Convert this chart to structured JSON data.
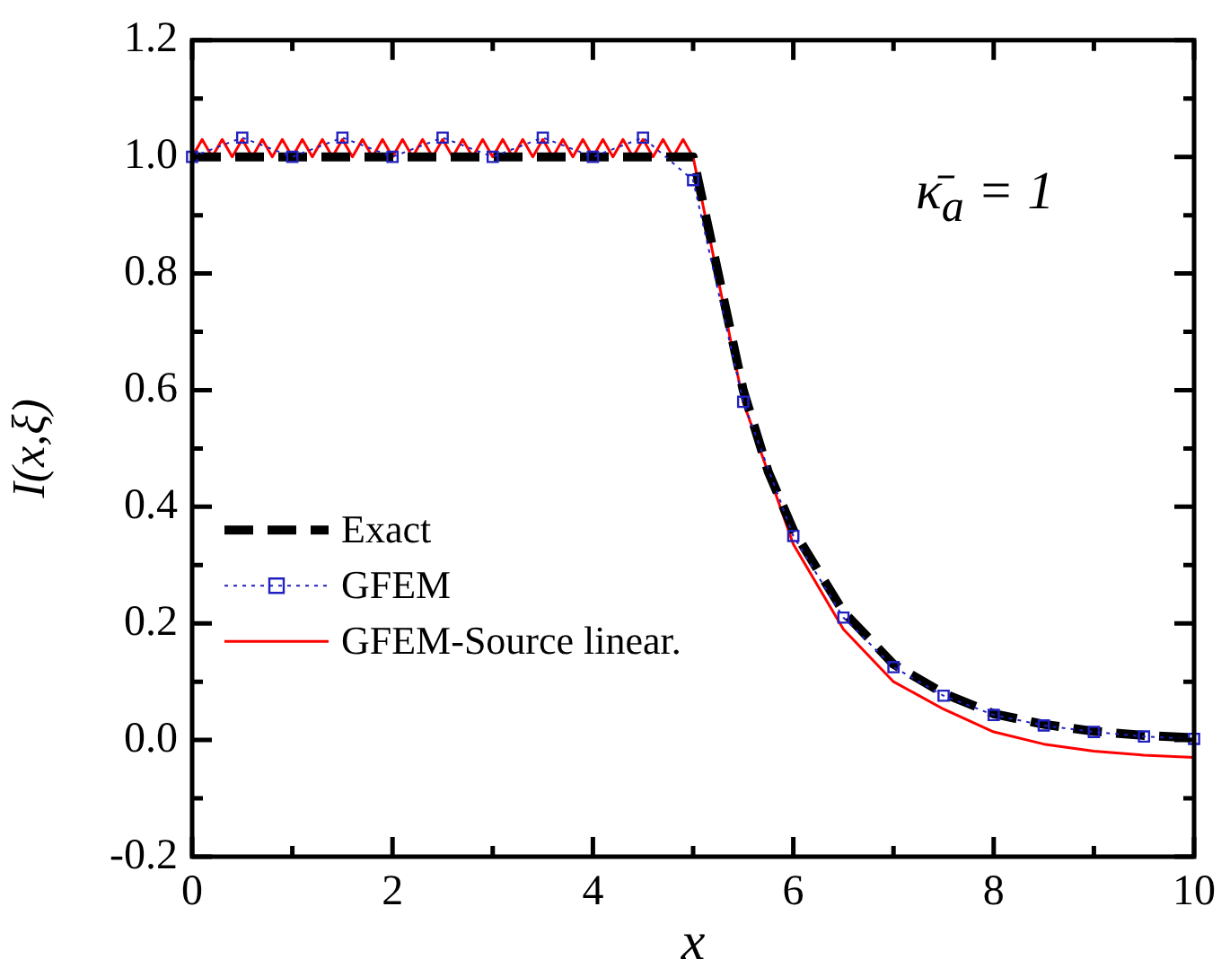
{
  "chart_data": {
    "type": "line",
    "xlabel": "x",
    "ylabel": "I(x,ξ)",
    "annotations": [
      "κ̄$_{a}$ = 1"
    ],
    "xlim": [
      0,
      10
    ],
    "xticks": [
      0,
      {
        "value": 1,
        "label": null
      },
      2,
      {
        "value": 3,
        "label": null
      },
      4,
      {
        "value": 5,
        "label": null
      },
      6,
      {
        "value": 7,
        "label": null
      },
      8,
      {
        "value": 9,
        "label": null
      },
      10
    ],
    "ylim": [
      -0.2,
      1.2
    ],
    "yticks": [
      -0.2,
      {
        "value": -0.1,
        "label": null
      },
      {
        "value": 0,
        "label": "0.0"
      },
      {
        "value": 0.1,
        "label": null
      },
      0.2,
      {
        "value": 0.3,
        "label": null
      },
      0.4,
      {
        "value": 0.5,
        "label": null
      },
      0.6,
      {
        "value": 0.7,
        "label": null
      },
      0.8,
      {
        "value": 0.9,
        "label": null
      },
      {
        "value": 1,
        "label": "1.0"
      },
      {
        "value": 1.1,
        "label": null
      },
      1.2
    ],
    "grid": false,
    "legend": "left",
    "series": [
      {
        "name": "Exact",
        "color": "#000000",
        "line_style": "dashed",
        "marker": "none",
        "x": [
          0,
          5,
          5.25,
          5.5,
          5.75,
          6,
          6.5,
          7,
          7.5,
          8,
          8.5,
          9,
          9.5,
          10
        ],
        "values": [
          1,
          1,
          0.8,
          0.6,
          0.46,
          0.36,
          0.22,
          0.13,
          0.08,
          0.045,
          0.027,
          0.015,
          0.008,
          0.004
        ]
      },
      {
        "name": "GFEM",
        "color": "#2020c0",
        "line_style": "dotted",
        "marker": "square",
        "x": [
          0,
          0.5,
          1,
          1.5,
          2,
          2.5,
          3,
          3.5,
          4,
          4.5,
          5,
          5.5,
          6,
          6.5,
          7,
          7.5,
          8,
          8.5,
          9,
          9.5,
          10
        ],
        "values": [
          1,
          1.033,
          1,
          1.033,
          1,
          1.033,
          1,
          1.033,
          1,
          1.033,
          0.96,
          0.58,
          0.35,
          0.21,
          0.125,
          0.076,
          0.043,
          0.025,
          0.014,
          0.006,
          0.002
        ]
      },
      {
        "name": "GFEM-Source linear.",
        "color": "#ff0000",
        "line_style": "solid",
        "marker": "none",
        "x": [
          0,
          0.1,
          0.2,
          0.3,
          0.4,
          0.5,
          0.6,
          0.7,
          0.8,
          0.9,
          1,
          1.1,
          1.2,
          1.3,
          1.4,
          1.5,
          1.6,
          1.7,
          1.8,
          1.9,
          2,
          2.1,
          2.2,
          2.3,
          2.4,
          2.5,
          2.6,
          2.7,
          2.8,
          2.9,
          3,
          3.1,
          3.2,
          3.3,
          3.4,
          3.5,
          3.6,
          3.7,
          3.8,
          3.9,
          4,
          4.1,
          4.2,
          4.3,
          4.4,
          4.5,
          4.6,
          4.7,
          4.8,
          4.9,
          5,
          5.5,
          6,
          6.5,
          7,
          7.5,
          8,
          8.5,
          9,
          9.5,
          10
        ],
        "values": [
          1,
          1.03,
          1,
          1.03,
          1,
          1.03,
          1,
          1.03,
          1,
          1.03,
          1,
          1.03,
          1,
          1.03,
          1,
          1.03,
          1,
          1.03,
          1,
          1.03,
          1,
          1.03,
          1,
          1.03,
          1,
          1.03,
          1,
          1.03,
          1,
          1.03,
          1,
          1.03,
          1,
          1.03,
          1,
          1.03,
          1,
          1.03,
          1,
          1.03,
          1,
          1.03,
          1,
          1.03,
          1,
          1.03,
          1,
          1.03,
          1,
          1.03,
          1,
          0.58,
          0.336,
          0.19,
          0.1,
          0.053,
          0.014,
          -0.007,
          -0.019,
          -0.026,
          -0.03
        ]
      }
    ]
  }
}
